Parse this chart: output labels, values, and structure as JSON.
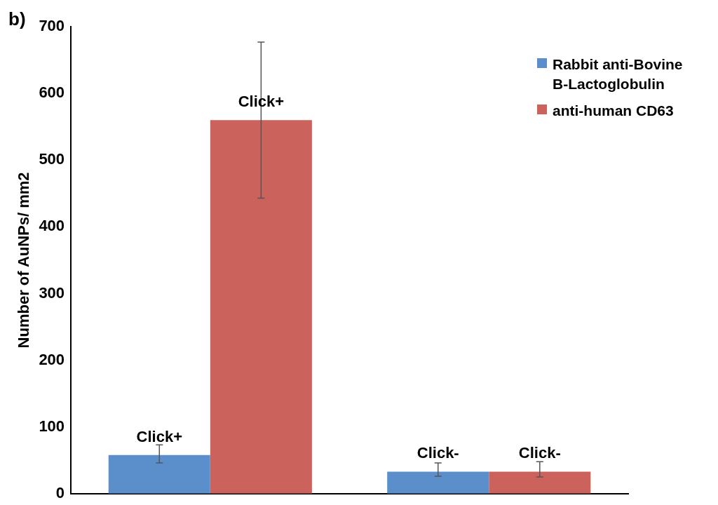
{
  "chart_data": {
    "type": "bar",
    "ylabel": "Number of AuNPs/ mm2",
    "categories": [
      null,
      null
    ],
    "series": [
      {
        "name": "Rabbit anti-Bovine B-Lactoglobulin",
        "color": "#5b8fcb",
        "values": [
          58,
          33
        ],
        "errors": [
          [
            46,
            73
          ],
          [
            26,
            46
          ]
        ],
        "value_labels": [
          "Click+",
          "Click-"
        ]
      },
      {
        "name": "anti-human CD63",
        "color": "#cc625c",
        "values": [
          560,
          33
        ],
        "errors": [
          [
            443,
            677
          ],
          [
            25,
            48
          ]
        ],
        "value_labels": [
          "Click+",
          "Click-"
        ]
      }
    ],
    "ylim": [
      0,
      700
    ],
    "yticks": [
      0,
      100,
      200,
      300,
      400,
      500,
      600,
      700
    ],
    "grid": false,
    "legend": "top right",
    "annotations": [
      "b)"
    ]
  }
}
